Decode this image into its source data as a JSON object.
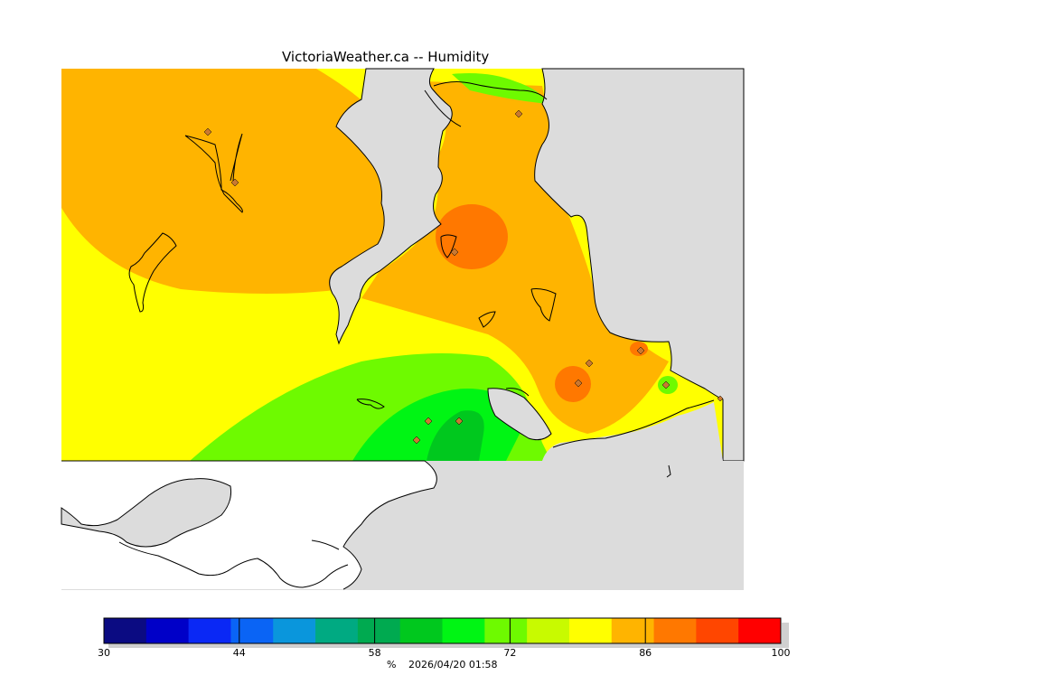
{
  "title": "VictoriaWeather.ca -- Humidity",
  "legend": {
    "min": 30,
    "max": 100,
    "step": 5,
    "colors": [
      "#0b0b82",
      "#0000c8",
      "#0a28f5",
      "#0a64f5",
      "#0a96dc",
      "#00aa82",
      "#00aa50",
      "#00c81e",
      "#00f514",
      "#6efa00",
      "#c8fa00",
      "#ffff00",
      "#ffb400",
      "#ff7800",
      "#ff4600",
      "#ff0000"
    ],
    "tick_labels": [
      "30",
      "44",
      "58",
      "72",
      "86",
      "100"
    ],
    "unit": "%",
    "timestamp": "2026/04/20 01:58"
  },
  "colors": {
    "land_background": "#dcdcdc",
    "water": "#ffffff",
    "coastline": "#000000",
    "station_marker": "#c87832"
  },
  "stations": {
    "count": 12,
    "marker_shape": "diamond"
  }
}
